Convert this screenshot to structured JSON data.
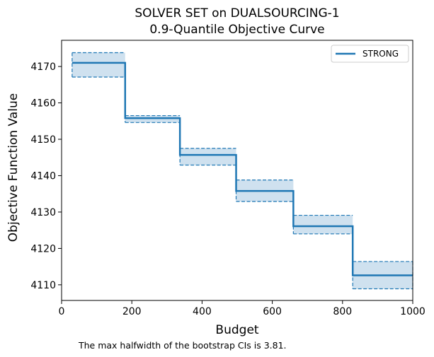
{
  "chart_data": {
    "type": "line",
    "title_lines": [
      "SOLVER SET on DUALSOURCING-1",
      "0.9-Quantile Objective Curve"
    ],
    "xlabel": "Budget",
    "ylabel": "Objective Function Value",
    "xlim": [
      0,
      1000
    ],
    "ylim": [
      4105.7,
      4177.2
    ],
    "xticks": [
      0,
      200,
      400,
      600,
      800,
      1000
    ],
    "xtick_labels": [
      "0",
      "200",
      "400",
      "600",
      "800",
      "1000"
    ],
    "yticks": [
      4110,
      4120,
      4130,
      4140,
      4150,
      4160,
      4170
    ],
    "ytick_labels": [
      "4110",
      "4120",
      "4130",
      "4140",
      "4150",
      "4160",
      "4170"
    ],
    "grid": false,
    "legend_position": "top-right",
    "series": [
      {
        "name": "STRONG",
        "color": "#1f77b4",
        "style": "step-post",
        "x": [
          30,
          181,
          337,
          497,
          660,
          829,
          1000
        ],
        "y": [
          4171.0,
          4155.8,
          4145.7,
          4135.8,
          4126.1,
          4112.6,
          4112.6
        ],
        "ci_lower": [
          4167.1,
          4154.6,
          4142.9,
          4132.9,
          4124.0,
          4108.9,
          4108.9
        ],
        "ci_upper": [
          4173.8,
          4156.5,
          4147.5,
          4138.8,
          4129.1,
          4116.4,
          4116.4
        ]
      }
    ],
    "ci_fill_color": "#cfe1ef"
  },
  "footnote": "The max halfwidth of the bootstrap CIs is 3.81."
}
